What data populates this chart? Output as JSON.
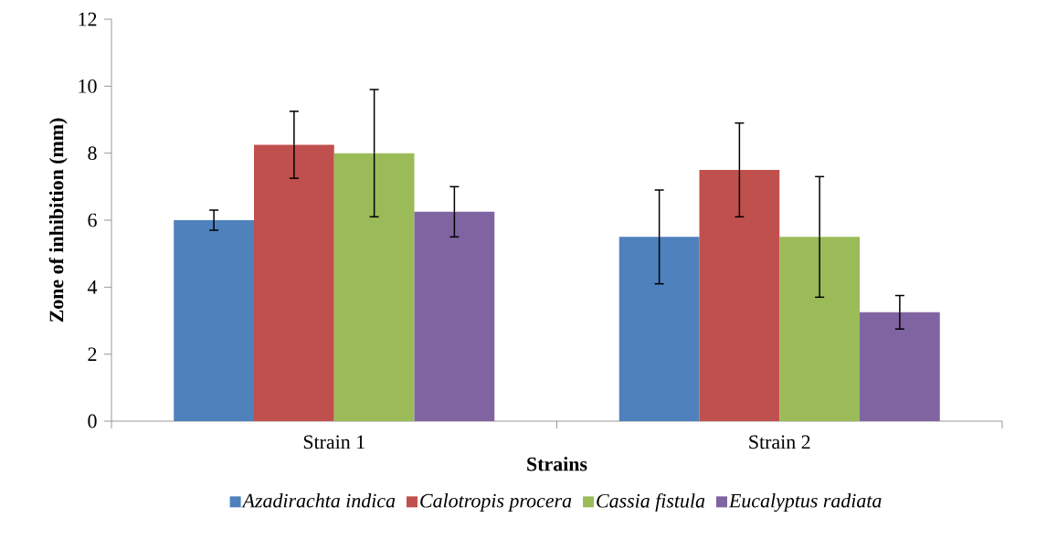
{
  "chart_data": {
    "type": "bar",
    "xlabel": "Strains",
    "ylabel": "Zone of inhibition (mm)",
    "categories": [
      "Strain 1",
      "Strain 2"
    ],
    "series": [
      {
        "name": "Azadirachta indica",
        "color": "#4f81bd",
        "values": [
          6,
          5.5
        ],
        "errors": [
          0.3,
          1.4
        ]
      },
      {
        "name": "Calotropis procera",
        "color": "#c0504d",
        "values": [
          8.25,
          7.5
        ],
        "errors": [
          1.0,
          1.4
        ]
      },
      {
        "name": "Cassia fistula",
        "color": "#9bbb59",
        "values": [
          8,
          5.5
        ],
        "errors": [
          1.9,
          1.8
        ]
      },
      {
        "name": "Eucalyptus radiata",
        "color": "#8064a2",
        "values": [
          6.25,
          3.25
        ],
        "errors": [
          0.75,
          0.5
        ]
      }
    ],
    "ylim": [
      0,
      12
    ],
    "yticks": [
      0,
      2,
      4,
      6,
      8,
      10,
      12
    ],
    "grid": false,
    "legend": "bottom"
  }
}
